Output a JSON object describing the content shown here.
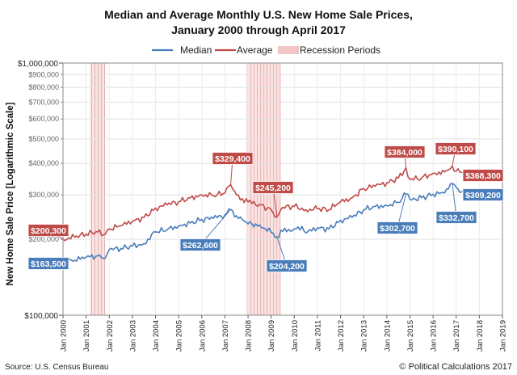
{
  "chart_data": {
    "type": "line",
    "title": "Median and Average Monthly U.S. New Home Sale Prices,",
    "subtitle": "January 2000 through April 2017",
    "ylabel": "New Home Sale Price [Logarithmic Scale]",
    "xlabel": "",
    "yscale": "log",
    "ylim": [
      100000,
      1000000
    ],
    "xlim": [
      2000,
      2019
    ],
    "y_major_ticks": [
      {
        "value": 100000,
        "label": "$100,000"
      },
      {
        "value": 1000000,
        "label": "$1,000,000"
      }
    ],
    "y_minor_ticks": [
      {
        "value": 200000,
        "label": "$200,000"
      },
      {
        "value": 300000,
        "label": "$300,000"
      },
      {
        "value": 400000,
        "label": "$400,000"
      },
      {
        "value": 500000,
        "label": "$500,000"
      },
      {
        "value": 600000,
        "label": "$600,000"
      },
      {
        "value": 700000,
        "label": "$700,000"
      },
      {
        "value": 800000,
        "label": "$800,000"
      },
      {
        "value": 900000,
        "label": "$900,000"
      }
    ],
    "x_ticks": [
      {
        "value": 2000,
        "label": "Jan 2000"
      },
      {
        "value": 2001,
        "label": "Jan 2001"
      },
      {
        "value": 2002,
        "label": "Jan 2002"
      },
      {
        "value": 2003,
        "label": "Jan 2003"
      },
      {
        "value": 2004,
        "label": "Jan 2004"
      },
      {
        "value": 2005,
        "label": "Jan 2005"
      },
      {
        "value": 2006,
        "label": "Jan 2006"
      },
      {
        "value": 2007,
        "label": "Jan 2007"
      },
      {
        "value": 2008,
        "label": "Jan 2008"
      },
      {
        "value": 2009,
        "label": "Jan 2009"
      },
      {
        "value": 2010,
        "label": "Jan 2010"
      },
      {
        "value": 2011,
        "label": "Jan 2011"
      },
      {
        "value": 2012,
        "label": "Jan 2012"
      },
      {
        "value": 2013,
        "label": "Jan 2013"
      },
      {
        "value": 2014,
        "label": "Jan 2014"
      },
      {
        "value": 2015,
        "label": "Jan 2015"
      },
      {
        "value": 2016,
        "label": "Jan 2016"
      },
      {
        "value": 2017,
        "label": "Jan 2017"
      },
      {
        "value": 2018,
        "label": "Jan 2018"
      },
      {
        "value": 2019,
        "label": "Jan 2019"
      }
    ],
    "legend": [
      {
        "name": "Median",
        "color": "#4a7ebb",
        "kind": "line"
      },
      {
        "name": "Average",
        "color": "#be4b48",
        "kind": "line"
      },
      {
        "name": "Recession Periods",
        "color": "#f2c4c4",
        "kind": "band"
      }
    ],
    "legend_position": "top-center",
    "recessions": [
      [
        2001.17,
        2001.83
      ],
      [
        2007.92,
        2009.42
      ]
    ],
    "series": [
      {
        "name": "Median",
        "color": "#4a7ebb",
        "x": [
          2000,
          2000.5,
          2001,
          2001.5,
          2001.75,
          2002,
          2002.5,
          2003,
          2003.5,
          2004,
          2004.5,
          2005,
          2005.5,
          2006,
          2006.5,
          2007,
          2007.25,
          2007.5,
          2007.75,
          2008,
          2008.5,
          2009,
          2009.25,
          2009.5,
          2010,
          2010.33,
          2010.5,
          2011,
          2011.5,
          2012,
          2012.5,
          2013,
          2013.5,
          2014,
          2014.5,
          2014.83,
          2015,
          2015.5,
          2016,
          2016.5,
          2016.83,
          2017,
          2017.25
        ],
        "values": [
          163500,
          165000,
          170000,
          172000,
          168000,
          182000,
          184000,
          188000,
          192000,
          214000,
          218000,
          226000,
          232000,
          240000,
          242000,
          250000,
          262600,
          248000,
          240000,
          230000,
          228000,
          213000,
          204200,
          215000,
          220000,
          225000,
          212000,
          222000,
          220000,
          238000,
          244000,
          262000,
          270000,
          272000,
          280000,
          302700,
          288000,
          292000,
          302000,
          305000,
          332700,
          322000,
          309200
        ]
      },
      {
        "name": "Average",
        "color": "#be4b48",
        "x": [
          2000,
          2000.5,
          2001,
          2001.5,
          2001.75,
          2002,
          2002.5,
          2003,
          2003.5,
          2004,
          2004.5,
          2005,
          2005.5,
          2006,
          2006.5,
          2007,
          2007.25,
          2007.5,
          2007.75,
          2008,
          2008.5,
          2009,
          2009.25,
          2009.5,
          2010,
          2010.5,
          2011,
          2011.5,
          2012,
          2012.5,
          2013,
          2013.5,
          2014,
          2014.5,
          2014.83,
          2015,
          2015.5,
          2016,
          2016.5,
          2016.83,
          2017,
          2017.25
        ],
        "values": [
          200300,
          204000,
          210000,
          214000,
          208000,
          220000,
          226000,
          236000,
          244000,
          266000,
          274000,
          282000,
          292000,
          300000,
          298000,
          305000,
          329400,
          300000,
          290000,
          281000,
          275000,
          262000,
          245200,
          268000,
          270000,
          262000,
          264000,
          262000,
          282000,
          292000,
          318000,
          325000,
          335000,
          350000,
          384000,
          345000,
          350000,
          365000,
          370000,
          390100,
          372000,
          368300
        ]
      }
    ],
    "annotations": [
      {
        "series": "Average",
        "label": "$200,300",
        "x": 2000.0,
        "value": 200300
      },
      {
        "series": "Median",
        "label": "$163,500",
        "x": 2000.0,
        "value": 163500
      },
      {
        "series": "Average",
        "label": "$329,400",
        "x": 2007.25,
        "value": 329400
      },
      {
        "series": "Median",
        "label": "$262,600",
        "x": 2007.25,
        "value": 262600
      },
      {
        "series": "Average",
        "label": "$245,200",
        "x": 2009.25,
        "value": 245200
      },
      {
        "series": "Median",
        "label": "$204,200",
        "x": 2009.25,
        "value": 204200
      },
      {
        "series": "Average",
        "label": "$384,000",
        "x": 2014.83,
        "value": 384000
      },
      {
        "series": "Median",
        "label": "$302,700",
        "x": 2014.83,
        "value": 302700
      },
      {
        "series": "Average",
        "label": "$390,100",
        "x": 2016.83,
        "value": 390100
      },
      {
        "series": "Median",
        "label": "$332,700",
        "x": 2016.83,
        "value": 332700
      },
      {
        "series": "Average",
        "label": "$368,300",
        "x": 2017.25,
        "value": 368300
      },
      {
        "series": "Median",
        "label": "$309,200",
        "x": 2017.25,
        "value": 309200
      }
    ]
  },
  "footer": {
    "source": "Source: U.S. Census Bureau",
    "copyright": "© Political Calculations 2017"
  }
}
